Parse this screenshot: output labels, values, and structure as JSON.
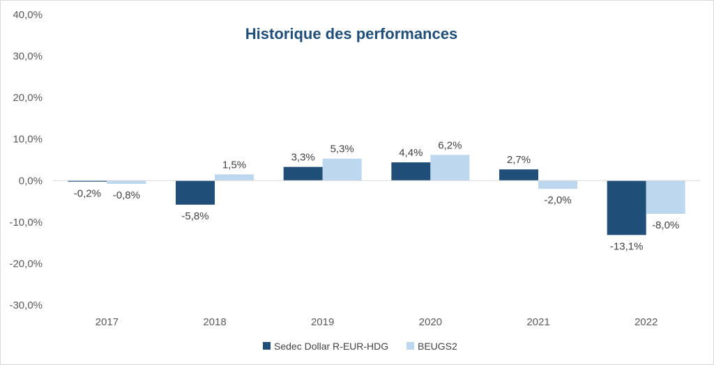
{
  "chart_data": {
    "type": "bar",
    "title": "Historique des performances",
    "categories": [
      "2017",
      "2018",
      "2019",
      "2020",
      "2021",
      "2022"
    ],
    "series": [
      {
        "name": "Sedec Dollar R-EUR-HDG",
        "color": "#1f4e79",
        "values": [
          -0.2,
          -5.8,
          3.3,
          4.4,
          2.7,
          -13.1
        ],
        "labels": [
          "-0,2%",
          "-5,8%",
          "3,3%",
          "4,4%",
          "2,7%",
          "-13,1%"
        ]
      },
      {
        "name": "BEUGS2",
        "color": "#bdd7ee",
        "values": [
          -0.8,
          1.5,
          5.3,
          6.2,
          -2.0,
          -8.0
        ],
        "labels": [
          "-0,8%",
          "1,5%",
          "5,3%",
          "6,2%",
          "-2,0%",
          "-8,0%"
        ]
      }
    ],
    "ylim": [
      -30,
      40
    ],
    "yticks": [
      -30,
      -20,
      -10,
      0,
      10,
      20,
      30,
      40
    ],
    "ytick_labels": [
      "-30,0%",
      "-20,0%",
      "-10,0%",
      "0,0%",
      "10,0%",
      "20,0%",
      "30,0%",
      "40,0%"
    ],
    "grid": false,
    "legend_position": "bottom"
  }
}
